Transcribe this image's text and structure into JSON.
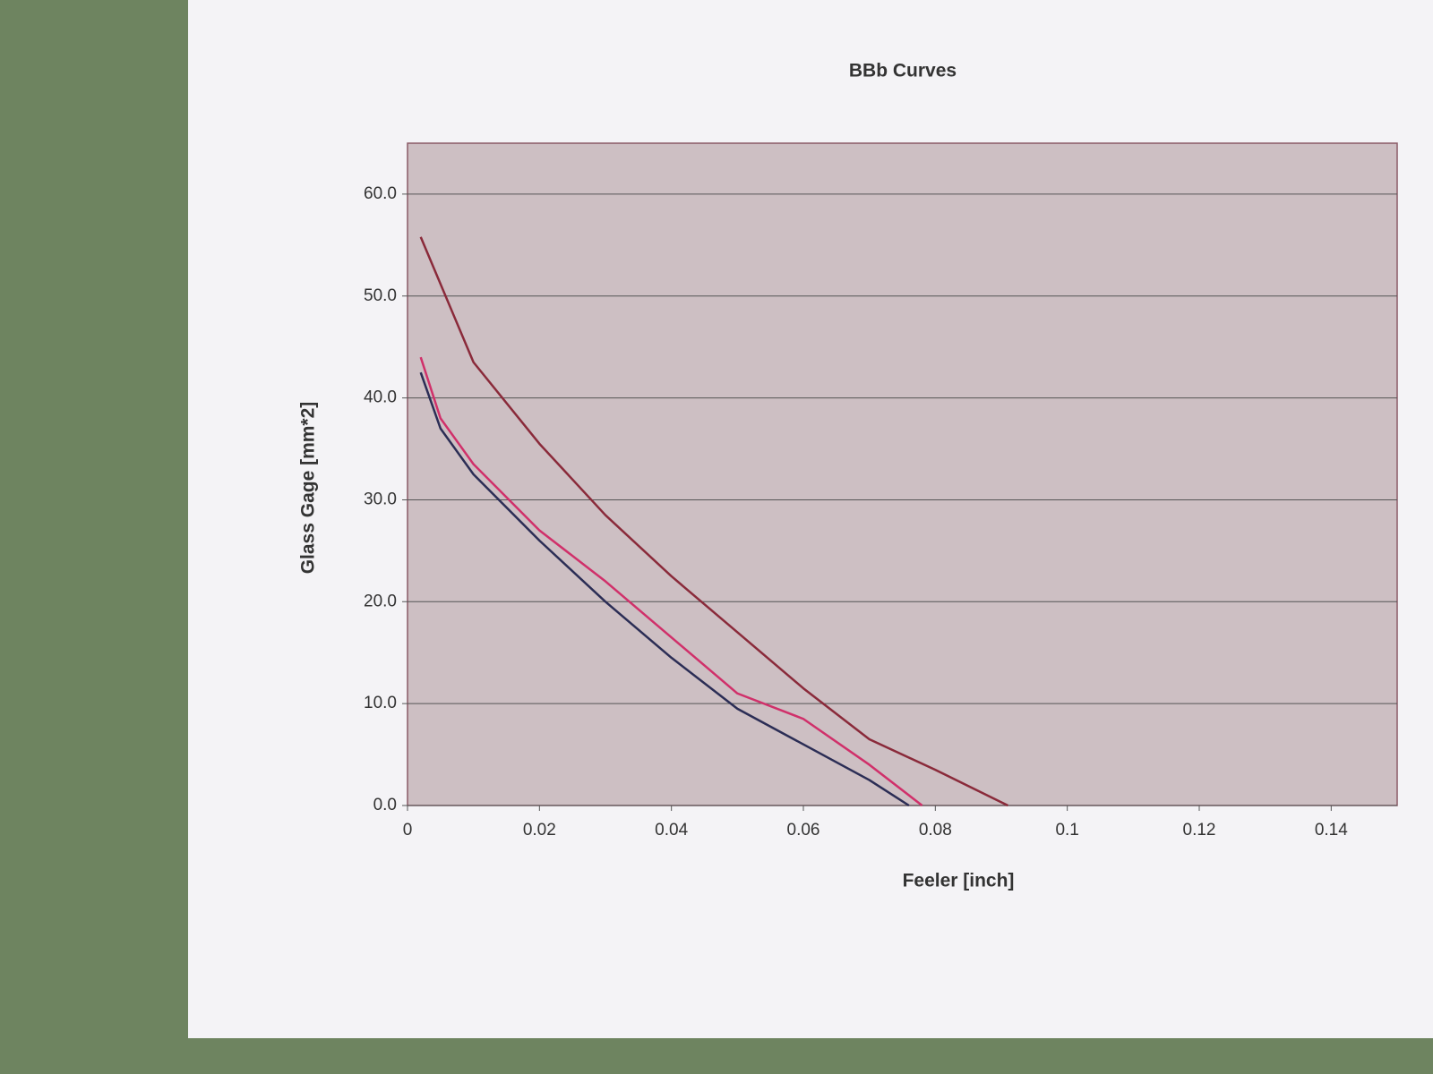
{
  "chart_data": {
    "type": "line",
    "title": "BBb Curves",
    "x_label": "Feeler [inch]",
    "y_label": "Glass Gage [mm*2]",
    "xlim": [
      0,
      0.15
    ],
    "xticks": [
      0,
      0.02,
      0.04,
      0.06,
      0.08,
      0.1,
      0.12,
      0.14
    ],
    "ylim": [
      0,
      65
    ],
    "yticks": [
      {
        "value": 0,
        "label": "0.0"
      },
      {
        "value": 10,
        "label": "10.0"
      },
      {
        "value": 20,
        "label": "20.0"
      },
      {
        "value": 30,
        "label": "30.0"
      },
      {
        "value": 40,
        "label": "40.0"
      },
      {
        "value": 50,
        "label": "50.0"
      },
      {
        "value": 60,
        "label": "60.0"
      }
    ],
    "grid": true,
    "plot_background": "#cdbfc3",
    "series": [
      {
        "color": "#2b2d55",
        "x": [
          0.002,
          0.005,
          0.01,
          0.02,
          0.03,
          0.04,
          0.05,
          0.06,
          0.07,
          0.076
        ],
        "values": [
          42.5,
          37,
          32.5,
          26,
          20,
          14.5,
          9.5,
          6,
          2.5,
          0
        ]
      },
      {
        "color": "#d0306a",
        "x": [
          0.002,
          0.005,
          0.01,
          0.02,
          0.03,
          0.04,
          0.05,
          0.06,
          0.07,
          0.078
        ],
        "values": [
          44,
          38,
          33.5,
          27,
          22,
          16.5,
          11,
          8.5,
          4,
          0
        ]
      },
      {
        "color": "#8a2a3a",
        "x": [
          0.002,
          0.01,
          0.02,
          0.03,
          0.04,
          0.05,
          0.06,
          0.07,
          0.08,
          0.091
        ],
        "values": [
          55.8,
          43.5,
          35.5,
          28.5,
          22.5,
          17,
          11.5,
          6.5,
          3.5,
          0
        ]
      }
    ]
  }
}
